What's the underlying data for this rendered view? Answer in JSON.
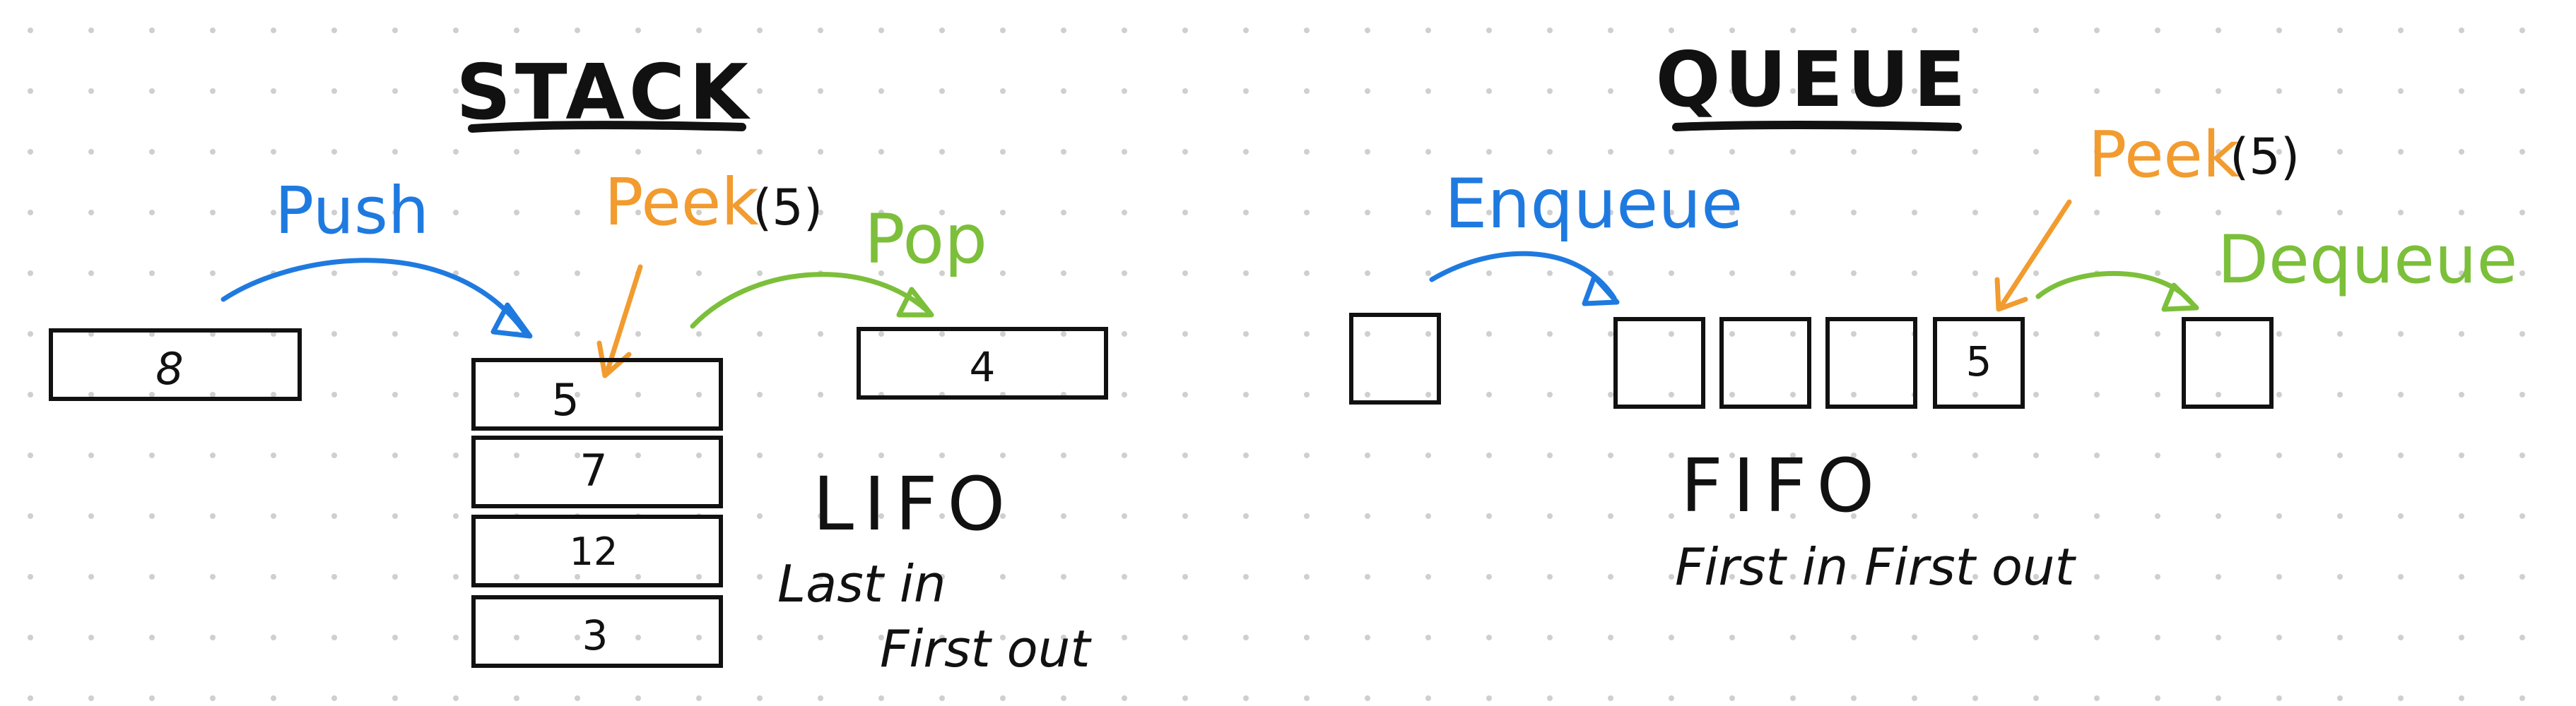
{
  "colors": {
    "push": "#1f7ae0",
    "peek": "#f29b2f",
    "pop": "#7cbf3a",
    "ink": "#111111",
    "dot": "#cfcfcf",
    "background": "#ffffff"
  },
  "stack": {
    "title": "STACK",
    "push_label": "Push",
    "peek_label": "Peek",
    "peek_value": "(5)",
    "pop_label": "Pop",
    "incoming_value": "8",
    "popped_value": "4",
    "items": [
      "5",
      "7",
      "12",
      "3"
    ],
    "mode": "LIFO",
    "desc_line1": "Last in",
    "desc_line2": "First out"
  },
  "queue": {
    "title": "QUEUE",
    "enqueue_label": "Enqueue",
    "peek_label": "Peek",
    "peek_value": "(5)",
    "dequeue_label": "Dequeue",
    "incoming_value": "",
    "items": [
      "",
      "",
      "",
      "5"
    ],
    "dequeued_value": "",
    "mode": "FIFO",
    "desc": "First in First out"
  }
}
